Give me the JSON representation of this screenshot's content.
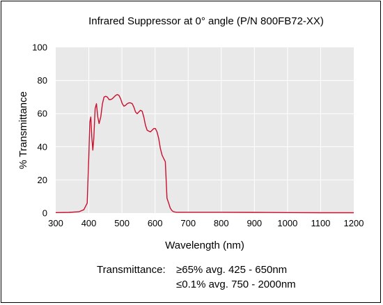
{
  "chart_data": {
    "type": "line",
    "title": "Infrared Suppressor at 0° angle (P/N 800FB72-XX)",
    "xlabel": "Wavelength (nm)",
    "ylabel": "% Transmittance",
    "xlim": [
      300,
      1200
    ],
    "ylim": [
      0,
      100
    ],
    "xticks": [
      "300",
      "400",
      "500",
      "600",
      "700",
      "800",
      "900",
      "1000",
      "1100",
      "1200"
    ],
    "yticks": [
      "0",
      "20",
      "40",
      "60",
      "80",
      "100"
    ],
    "grid": true,
    "plot_background": "#e9e9e9",
    "grid_color": "#ffffff",
    "series": [
      {
        "color": "#c8102e",
        "x": [
          300,
          340,
          370,
          385,
          395,
          400,
          403,
          406,
          409,
          412,
          415,
          419,
          423,
          427,
          431,
          436,
          441,
          446,
          451,
          456,
          461,
          466,
          471,
          476,
          481,
          486,
          491,
          496,
          501,
          506,
          511,
          516,
          521,
          526,
          531,
          536,
          541,
          546,
          551,
          556,
          561,
          566,
          571,
          576,
          581,
          586,
          591,
          596,
          601,
          606,
          611,
          616,
          621,
          626,
          631,
          636,
          641,
          646,
          651,
          656,
          661,
          666,
          671,
          676,
          681,
          686,
          691,
          694,
          696,
          698,
          700,
          703,
          706,
          710,
          715,
          725,
          750,
          800,
          900,
          1000,
          1100,
          1200
        ],
        "y": [
          0.3,
          0.4,
          0.8,
          2,
          6,
          35,
          55,
          58,
          46,
          38,
          45,
          63,
          66,
          58,
          54,
          58,
          66,
          70,
          70.5,
          70,
          68.5,
          68.5,
          69,
          70,
          71,
          71.5,
          71,
          69,
          66,
          64.5,
          65,
          66,
          66.5,
          66.5,
          66,
          64,
          61,
          60,
          61,
          62,
          61.5,
          58,
          53,
          50,
          49.5,
          49,
          50,
          51,
          51,
          49,
          45,
          39,
          35,
          33,
          31,
          9,
          6,
          3,
          1.5,
          0.8,
          0.6,
          0.5,
          0.5,
          0.5,
          0.5,
          0.5,
          0.5,
          0.5,
          0.5,
          0.5,
          0.5,
          0.5,
          0.5,
          0.5,
          0.5,
          0.5,
          0.5,
          0.5,
          0.4,
          0.3,
          0.2,
          0.2
        ]
      }
    ]
  },
  "note": {
    "label": "Transmittance:",
    "line1": "≥65%  avg. 425 - 650nm",
    "line2": "≤0.1% avg. 750 - 2000nm"
  }
}
